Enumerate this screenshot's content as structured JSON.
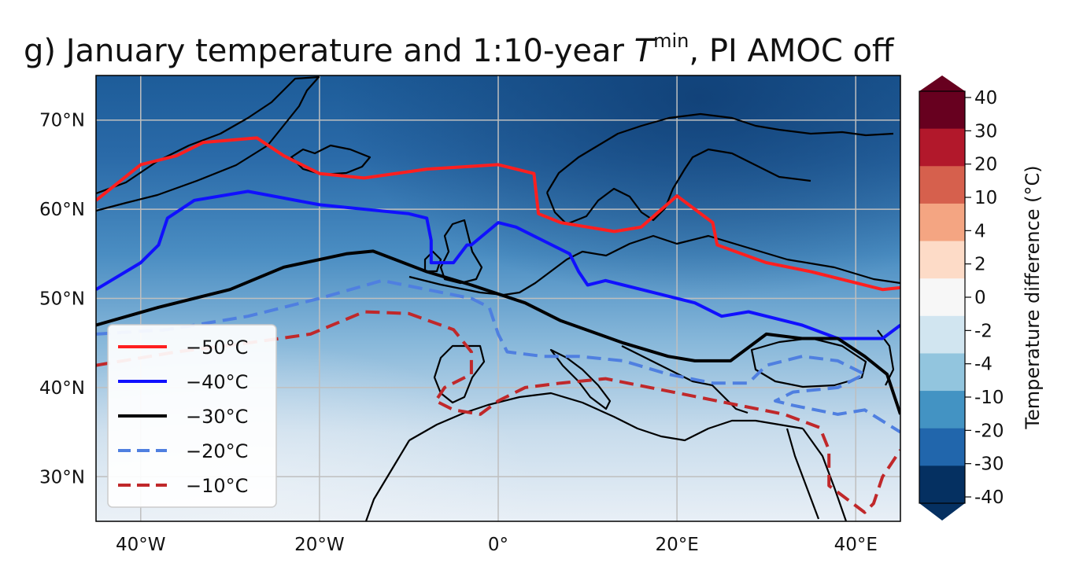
{
  "title": {
    "prefix": "g) January temperature and 1:10-year ",
    "variable": "T",
    "superscript": "min",
    "suffix": ", PI AMOC off"
  },
  "map": {
    "lon_range": [
      -45,
      45
    ],
    "lat_range": [
      25,
      75
    ],
    "lat_ticks": [
      {
        "lat": 70,
        "label": "70°N"
      },
      {
        "lat": 60,
        "label": "60°N"
      },
      {
        "lat": 50,
        "label": "50°N"
      },
      {
        "lat": 40,
        "label": "40°N"
      },
      {
        "lat": 30,
        "label": "30°N"
      }
    ],
    "lon_ticks": [
      {
        "lon": -40,
        "label": "40°W"
      },
      {
        "lon": -20,
        "label": "20°W"
      },
      {
        "lon": 0,
        "label": "0°"
      },
      {
        "lon": 20,
        "label": "20°E"
      },
      {
        "lon": 40,
        "label": "40°E"
      }
    ],
    "grid": true
  },
  "colorbar": {
    "label": "Temperature difference (°C)",
    "ticks": [
      "40",
      "30",
      "20",
      "10",
      "4",
      "2",
      "0",
      "-2",
      "-4",
      "-10",
      "-20",
      "-30",
      "-40"
    ],
    "colors": [
      "#67001f",
      "#b2182b",
      "#d6604d",
      "#f4a582",
      "#fddbc7",
      "#f7f7f7",
      "#d1e5f0",
      "#92c5de",
      "#4393c3",
      "#2166ac",
      "#053061"
    ]
  },
  "legend": [
    {
      "label": "−50°C",
      "color": "#ff1f1f",
      "dashed": false
    },
    {
      "label": "−40°C",
      "color": "#1010ff",
      "dashed": false
    },
    {
      "label": "−30°C",
      "color": "#000000",
      "dashed": false
    },
    {
      "label": "−20°C",
      "color": "#4f7fe0",
      "dashed": true
    },
    {
      "label": "−10°C",
      "color": "#c0282a",
      "dashed": true
    }
  ],
  "contours": [
    {
      "level": "−50°C",
      "points": [
        [
          -45,
          61
        ],
        [
          -40,
          65
        ],
        [
          -36,
          66
        ],
        [
          -33,
          67.5
        ],
        [
          -27,
          68
        ],
        [
          -24,
          66
        ],
        [
          -20,
          64
        ],
        [
          -15,
          63.5
        ],
        [
          -8,
          64.5
        ],
        [
          0,
          65
        ],
        [
          4,
          64
        ],
        [
          4.5,
          59.5
        ],
        [
          7,
          58.5
        ],
        [
          13,
          57.5
        ],
        [
          16,
          58
        ],
        [
          20,
          61.5
        ],
        [
          24,
          58.5
        ],
        [
          24.5,
          56
        ],
        [
          30,
          54
        ],
        [
          35,
          53
        ],
        [
          43,
          51
        ],
        [
          45,
          51.2
        ]
      ]
    },
    {
      "level": "−40°C",
      "points": [
        [
          -45,
          51
        ],
        [
          -40,
          54
        ],
        [
          -38,
          56
        ],
        [
          -37,
          59
        ],
        [
          -34,
          61
        ],
        [
          -28,
          62
        ],
        [
          -20,
          60.5
        ],
        [
          -10,
          59.5
        ],
        [
          -8,
          59
        ],
        [
          -7.5,
          56.5
        ],
        [
          -7.5,
          54
        ],
        [
          -5,
          54
        ],
        [
          -3.5,
          56
        ],
        [
          -3,
          56
        ],
        [
          0,
          58.5
        ],
        [
          2,
          58
        ],
        [
          6,
          56
        ],
        [
          8,
          55
        ],
        [
          9,
          53
        ],
        [
          10,
          51.5
        ],
        [
          12,
          52
        ],
        [
          14,
          51.5
        ],
        [
          18,
          50.5
        ],
        [
          22,
          49.5
        ],
        [
          25,
          48
        ],
        [
          28,
          48.5
        ],
        [
          34,
          47
        ],
        [
          38,
          45.5
        ],
        [
          43,
          45.5
        ],
        [
          45,
          47
        ]
      ]
    },
    {
      "level": "−30°C",
      "points": [
        [
          -45,
          47
        ],
        [
          -38,
          49
        ],
        [
          -30,
          51
        ],
        [
          -24,
          53.5
        ],
        [
          -17,
          55
        ],
        [
          -14,
          55.3
        ],
        [
          -8,
          53
        ],
        [
          -3,
          51.5
        ],
        [
          3,
          49.5
        ],
        [
          7,
          47.5
        ],
        [
          14,
          45
        ],
        [
          19,
          43.5
        ],
        [
          22,
          43
        ],
        [
          26,
          43
        ],
        [
          30,
          46
        ],
        [
          34,
          45.5
        ],
        [
          38,
          45.5
        ],
        [
          41,
          43.5
        ],
        [
          43.5,
          41.5
        ],
        [
          45,
          37
        ]
      ]
    },
    {
      "level": "−20°C",
      "points": [
        [
          -45,
          46
        ],
        [
          -37,
          46.5
        ],
        [
          -28,
          48
        ],
        [
          -20,
          50
        ],
        [
          -13,
          52
        ],
        [
          -8,
          51
        ],
        [
          -3,
          50
        ],
        [
          -1,
          49
        ],
        [
          0,
          46
        ],
        [
          1,
          44
        ],
        [
          5,
          43.5
        ],
        [
          9,
          43.5
        ],
        [
          14,
          43
        ],
        [
          19,
          41.5
        ],
        [
          24,
          40.5
        ],
        [
          28,
          40.5
        ],
        [
          30,
          42.5
        ],
        [
          34,
          43.5
        ],
        [
          38,
          43
        ],
        [
          41,
          41.5
        ],
        [
          38,
          40
        ],
        [
          33,
          39.5
        ],
        [
          31,
          38.5
        ],
        [
          33,
          38
        ],
        [
          38,
          37
        ],
        [
          41,
          37.5
        ],
        [
          45,
          35
        ]
      ]
    },
    {
      "level": "−10°C",
      "points": [
        [
          -45,
          42.5
        ],
        [
          -36,
          44
        ],
        [
          -28,
          45
        ],
        [
          -21,
          46
        ],
        [
          -15,
          48.5
        ],
        [
          -10,
          48.3
        ],
        [
          -5,
          46.5
        ],
        [
          -3,
          44
        ],
        [
          -3,
          41.5
        ],
        [
          -6,
          40
        ],
        [
          -7,
          38.5
        ],
        [
          -5,
          37.5
        ],
        [
          -2,
          37
        ],
        [
          0,
          38.5
        ],
        [
          3,
          40
        ],
        [
          7,
          40.5
        ],
        [
          12,
          41
        ],
        [
          17,
          40
        ],
        [
          22,
          39
        ],
        [
          27,
          38
        ],
        [
          32,
          37
        ],
        [
          36,
          35.5
        ],
        [
          37,
          33
        ],
        [
          37,
          29
        ],
        [
          39,
          27.5
        ],
        [
          41,
          26
        ],
        [
          42,
          27
        ],
        [
          43,
          30
        ],
        [
          45,
          33
        ]
      ]
    }
  ]
}
